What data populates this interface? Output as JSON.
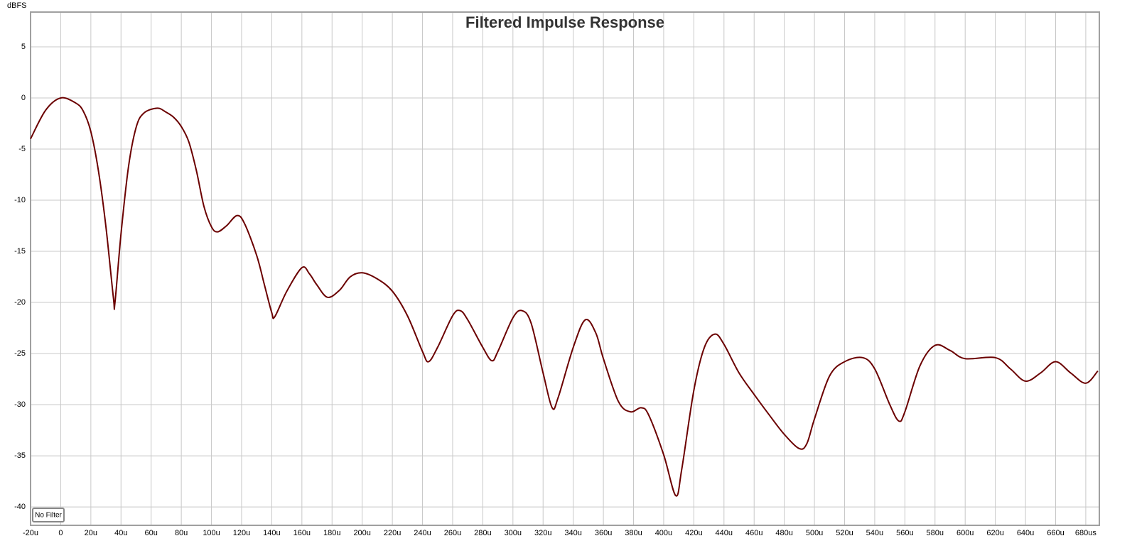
{
  "chart_data": {
    "type": "line",
    "title": "Filtered Impulse Response",
    "y_label": "dBFS",
    "button": "No Filter",
    "grid": true,
    "xlim": [
      -20,
      689
    ],
    "ylim": [
      -41.8,
      8.4
    ],
    "yticks": [
      5,
      0,
      -5,
      -10,
      -15,
      -20,
      -25,
      -30,
      -35,
      -40
    ],
    "xticks": [
      {
        "value": -20,
        "label": "-20u"
      },
      0,
      {
        "value": 20,
        "label": "20u"
      },
      {
        "value": 40,
        "label": "40u"
      },
      {
        "value": 60,
        "label": "60u"
      },
      {
        "value": 80,
        "label": "80u"
      },
      {
        "value": 100,
        "label": "100u"
      },
      {
        "value": 120,
        "label": "120u"
      },
      {
        "value": 140,
        "label": "140u"
      },
      {
        "value": 160,
        "label": "160u"
      },
      {
        "value": 180,
        "label": "180u"
      },
      {
        "value": 200,
        "label": "200u"
      },
      {
        "value": 220,
        "label": "220u"
      },
      {
        "value": 240,
        "label": "240u"
      },
      {
        "value": 260,
        "label": "260u"
      },
      {
        "value": 280,
        "label": "280u"
      },
      {
        "value": 300,
        "label": "300u"
      },
      {
        "value": 320,
        "label": "320u"
      },
      {
        "value": 340,
        "label": "340u"
      },
      {
        "value": 360,
        "label": "360u"
      },
      {
        "value": 380,
        "label": "380u"
      },
      {
        "value": 400,
        "label": "400u"
      },
      {
        "value": 420,
        "label": "420u"
      },
      {
        "value": 440,
        "label": "440u"
      },
      {
        "value": 460,
        "label": "460u"
      },
      {
        "value": 480,
        "label": "480u"
      },
      {
        "value": 500,
        "label": "500u"
      },
      {
        "value": 520,
        "label": "520u"
      },
      {
        "value": 540,
        "label": "540u"
      },
      {
        "value": 560,
        "label": "560u"
      },
      {
        "value": 580,
        "label": "580u"
      },
      {
        "value": 600,
        "label": "600u"
      },
      {
        "value": 620,
        "label": "620u"
      },
      {
        "value": 640,
        "label": "640u"
      },
      {
        "value": 660,
        "label": "660u"
      },
      {
        "value": 680,
        "label": "680us"
      }
    ],
    "series": [
      {
        "color": "#6b0000",
        "x": [
          -20,
          -10,
          0,
          10,
          15,
          20,
          25,
          30,
          35,
          36,
          40,
          45,
          50,
          55,
          64,
          70,
          75,
          80,
          85,
          90,
          95,
          100,
          104,
          110,
          117,
          122,
          130,
          135,
          140,
          142,
          150,
          160,
          165,
          170,
          177,
          185,
          192,
          200,
          210,
          220,
          230,
          240,
          244,
          250,
          260,
          265,
          270,
          280,
          286,
          290,
          300,
          306,
          312,
          320,
          326,
          330,
          340,
          348,
          355,
          360,
          370,
          378,
          385,
          390,
          400,
          408,
          412,
          420,
          427,
          434,
          440,
          450,
          460,
          470,
          480,
          490,
          495,
          500,
          510,
          520,
          532,
          540,
          550,
          556,
          560,
          570,
          580,
          590,
          600,
          620,
          630,
          640,
          650,
          660,
          670,
          680,
          688
        ],
        "values": [
          -4.0,
          -1.2,
          0,
          -0.5,
          -1.3,
          -3.3,
          -7.1,
          -12.6,
          -19.6,
          -20.0,
          -13.3,
          -6.7,
          -2.9,
          -1.5,
          -1.0,
          -1.4,
          -1.9,
          -2.8,
          -4.3,
          -7.1,
          -10.6,
          -12.6,
          -13.1,
          -12.5,
          -11.5,
          -12.3,
          -15.4,
          -18.2,
          -21.0,
          -21.4,
          -18.9,
          -16.6,
          -17.2,
          -18.3,
          -19.5,
          -18.8,
          -17.5,
          -17.1,
          -17.7,
          -18.9,
          -21.3,
          -24.8,
          -25.8,
          -24.4,
          -21.3,
          -20.8,
          -21.7,
          -24.4,
          -25.7,
          -24.8,
          -21.5,
          -20.8,
          -22.0,
          -26.9,
          -30.3,
          -29.3,
          -24.4,
          -21.7,
          -23.0,
          -25.5,
          -29.7,
          -30.7,
          -30.3,
          -31.0,
          -34.9,
          -38.9,
          -36.3,
          -28.6,
          -24.4,
          -23.1,
          -24.1,
          -26.9,
          -29.0,
          -31.0,
          -32.9,
          -34.3,
          -33.8,
          -31.4,
          -27.2,
          -25.8,
          -25.4,
          -26.5,
          -30.0,
          -31.6,
          -30.7,
          -26.2,
          -24.2,
          -24.7,
          -25.5,
          -25.4,
          -26.5,
          -27.7,
          -26.9,
          -25.8,
          -26.9,
          -27.9,
          -26.7
        ]
      }
    ]
  }
}
